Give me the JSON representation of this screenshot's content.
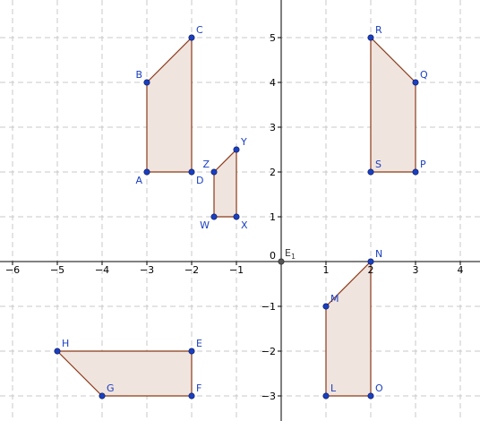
{
  "chart_data": {
    "type": "coordinate-plane",
    "xlim": [
      -6.5,
      4.4
    ],
    "ylim": [
      -3.5,
      5.8
    ],
    "x_ticks": [
      -6,
      -5,
      -4,
      -3,
      -2,
      -1,
      1,
      2,
      3,
      4
    ],
    "y_ticks": [
      -3,
      -2,
      -1,
      1,
      2,
      3,
      4,
      5
    ],
    "origin_label": "0",
    "grid": true,
    "colors": {
      "fill": "#f0e4de",
      "edge": "#8a3a1a",
      "point": "#1a3fc0",
      "label": "#1a3fc0",
      "origin_point": "#555555"
    },
    "polygons": [
      {
        "name": "ABCD",
        "points": [
          "A",
          "B",
          "C",
          "D"
        ]
      },
      {
        "name": "WXYZ",
        "points": [
          "W",
          "X",
          "Y",
          "Z"
        ]
      },
      {
        "name": "PQRS",
        "points": [
          "P",
          "Q",
          "R",
          "S"
        ]
      },
      {
        "name": "EFGH",
        "points": [
          "E",
          "F",
          "G",
          "H"
        ]
      },
      {
        "name": "LMNO",
        "points": [
          "L",
          "M",
          "N",
          "O"
        ]
      }
    ],
    "points": [
      {
        "label": "A",
        "x": -3,
        "y": 2,
        "anchor": "bottom-left"
      },
      {
        "label": "B",
        "x": -3,
        "y": 4,
        "anchor": "top-left"
      },
      {
        "label": "C",
        "x": -2,
        "y": 5,
        "anchor": "top-right"
      },
      {
        "label": "D",
        "x": -2,
        "y": 2,
        "anchor": "bottom-right"
      },
      {
        "label": "W",
        "x": -1.5,
        "y": 1,
        "anchor": "bottom-left"
      },
      {
        "label": "X",
        "x": -1,
        "y": 1,
        "anchor": "bottom-right"
      },
      {
        "label": "Y",
        "x": -1,
        "y": 2.5,
        "anchor": "top-right"
      },
      {
        "label": "Z",
        "x": -1.5,
        "y": 2,
        "anchor": "top-left"
      },
      {
        "label": "P",
        "x": 3,
        "y": 2,
        "anchor": "top-right"
      },
      {
        "label": "Q",
        "x": 3,
        "y": 4,
        "anchor": "top-right"
      },
      {
        "label": "R",
        "x": 2,
        "y": 5,
        "anchor": "top-right"
      },
      {
        "label": "S",
        "x": 2,
        "y": 2,
        "anchor": "top-right"
      },
      {
        "label": "E",
        "x": -2,
        "y": -2,
        "anchor": "top-right"
      },
      {
        "label": "F",
        "x": -2,
        "y": -3,
        "anchor": "top-right"
      },
      {
        "label": "G",
        "x": -4,
        "y": -3,
        "anchor": "top-right"
      },
      {
        "label": "H",
        "x": -5,
        "y": -2,
        "anchor": "top-right"
      },
      {
        "label": "L",
        "x": 1,
        "y": -3,
        "anchor": "top-right"
      },
      {
        "label": "M",
        "x": 1,
        "y": -1,
        "anchor": "top-right"
      },
      {
        "label": "N",
        "x": 2,
        "y": 0,
        "anchor": "top-right"
      },
      {
        "label": "O",
        "x": 2,
        "y": -3,
        "anchor": "top-right"
      }
    ],
    "origin_point": {
      "label": "E",
      "subscript": "1",
      "x": 0,
      "y": 0
    }
  }
}
